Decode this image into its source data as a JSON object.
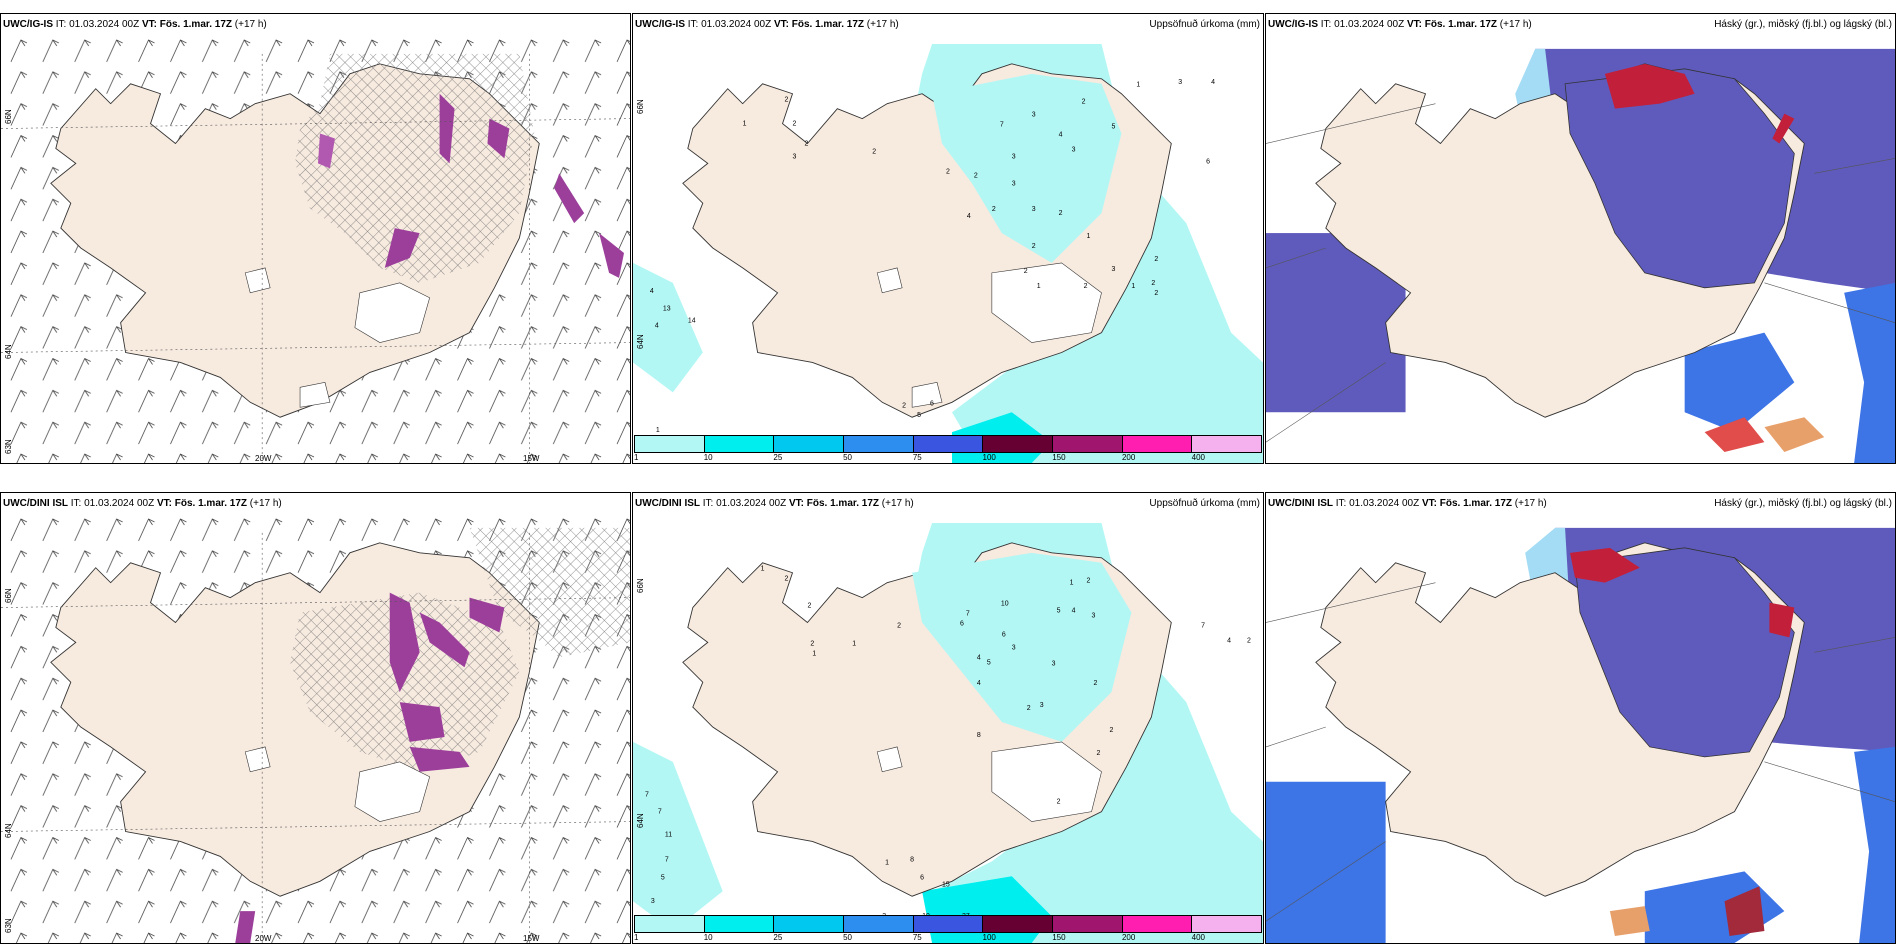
{
  "panels": {
    "top_left": {
      "model": "UWC/IG-IS",
      "rest": "IT: 01.03.2024 00Z",
      "vt_label": "VT:",
      "vt": "Fös. 1.mar. 17Z",
      "lead": "(+17 h)",
      "right": ""
    },
    "top_mid": {
      "model": "UWC/IG-IS",
      "rest": "IT: 01.03.2024 00Z",
      "vt_label": "VT:",
      "vt": "Fös. 1.mar. 17Z",
      "lead": "(+17 h)",
      "right": "Uppsöfnuð úrkoma (mm)"
    },
    "top_right": {
      "model": "UWC/IG-IS",
      "rest": "IT: 01.03.2024 00Z",
      "vt_label": "VT:",
      "vt": "Fös. 1.mar. 17Z",
      "lead": "(+17 h)",
      "right": "Háský (gr.), miðský (fj.bl.) og lágský (bl.)"
    },
    "bot_left": {
      "model": "UWC/DINI ISL",
      "rest": "IT: 01.03.2024 00Z",
      "vt_label": "VT:",
      "vt": "Fös. 1.mar. 17Z",
      "lead": "(+17 h)",
      "right": ""
    },
    "bot_mid": {
      "model": "UWC/DINI ISL",
      "rest": "IT: 01.03.2024 00Z",
      "vt_label": "VT:",
      "vt": "Fös. 1.mar. 17Z",
      "lead": "(+17 h)",
      "right": "Uppsöfnuð úrkoma (mm)"
    },
    "bot_right": {
      "model": "UWC/DINI ISL",
      "rest": "IT: 01.03.2024 00Z",
      "vt_label": "VT:",
      "vt": "Fös. 1.mar. 17Z",
      "lead": "(+17 h)",
      "right": "Háský (gr.), miðský (fj.bl.) og lágský (bl.)"
    }
  },
  "axis_labels": {
    "lon_20": "20W",
    "lon_15": "15W",
    "lat_66": "66N",
    "lat_64": "64N",
    "lat_65": "65N",
    "lat_63": "63N"
  },
  "precip_legend": {
    "colors": [
      "#b3f7f5",
      "#00eeee",
      "#00c8ee",
      "#2e8ef0",
      "#3a56e0",
      "#660033",
      "#a0166e",
      "#ff1eb0",
      "#f5b0ee"
    ],
    "ticks": [
      "1",
      "10",
      "25",
      "50",
      "75",
      "100",
      "150",
      "200",
      "400"
    ]
  },
  "precip_values": {
    "top": [
      "2",
      "1",
      "2",
      "2",
      "3",
      "2",
      "2",
      "7",
      "3",
      "4",
      "2",
      "1",
      "5",
      "2",
      "3",
      "3",
      "2",
      "3",
      "2",
      "3",
      "4",
      "2",
      "1",
      "2",
      "1",
      "2",
      "3",
      "1",
      "2",
      "2",
      "2",
      "3",
      "4",
      "6",
      "4",
      "13",
      "14",
      "4",
      "1",
      "2",
      "5",
      "6"
    ],
    "bottom": [
      "2",
      "1",
      "2",
      "2",
      "1",
      "1",
      "2",
      "7",
      "6",
      "10",
      "5",
      "4",
      "3",
      "1",
      "2",
      "6",
      "3",
      "4",
      "5",
      "4",
      "3",
      "2",
      "3",
      "2",
      "2",
      "2",
      "7",
      "4",
      "2",
      "8",
      "7",
      "7",
      "11",
      "7",
      "5",
      "3",
      "1",
      "8",
      "6",
      "15",
      "37",
      "19",
      "3",
      "2"
    ]
  },
  "colors": {
    "land": "#f7eadf",
    "land_dark": "#e8d6c2",
    "ocean": "#ffffff",
    "precip_light": "#b3f7f5",
    "precip_mid": "#69f0ee",
    "cloud_high": "#5f5bbd",
    "cloud_mid": "#3d74e6",
    "cloud_low": "#a4dcf5",
    "cloud_red": "#c21f3a",
    "purple_icing": "#9b3f9b"
  }
}
